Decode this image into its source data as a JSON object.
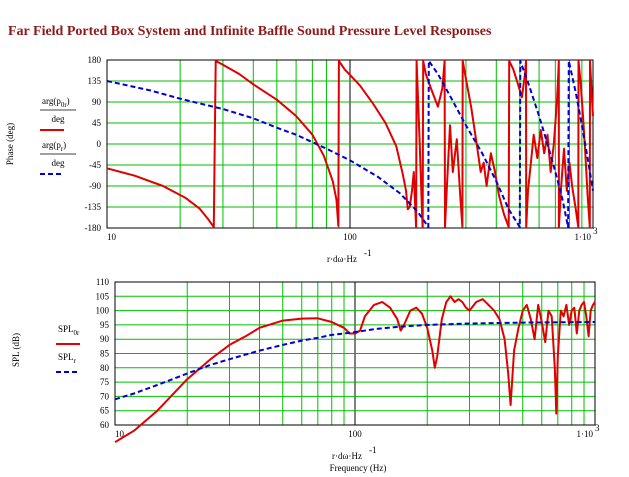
{
  "title": "Far Field Ported Box System and Infinite Baffle Sound Pressure Level Responses",
  "colors": {
    "grid": "#00c000",
    "series_solid": "#e00000",
    "series_dashed": "#0000d0",
    "title": "#8b1a1a"
  },
  "chart_data": [
    {
      "type": "line",
      "x_scale": "log",
      "xlim": [
        10,
        1000
      ],
      "ylim": [
        -180,
        180
      ],
      "yticks": [
        -180,
        -135,
        -90,
        -45,
        0,
        45,
        90,
        135,
        180
      ],
      "xticks": [
        "10",
        "100",
        "1·10"
      ],
      "xtick_exp": "3",
      "xlabel": "r·dω·Hz",
      "xlabel_exp": "-1",
      "ylabel": "Phase (deg)",
      "legend": [
        {
          "expr": "arg(p",
          "sub": "0r",
          "tail": ")",
          "den": "deg",
          "style": "solid"
        },
        {
          "expr": "arg(p",
          "sub": "r",
          "tail": ")",
          "den": "deg",
          "style": "dashed"
        }
      ],
      "series": [
        {
          "style": "solid",
          "points": [
            [
              10,
              -52
            ],
            [
              13,
              -68
            ],
            [
              17,
              -90
            ],
            [
              21,
              -115
            ],
            [
              24,
              -138
            ],
            [
              26,
              -160
            ],
            [
              27.5,
              -178
            ],
            [
              27.5,
              -175
            ],
            [
              28,
              178
            ],
            [
              30,
              170
            ],
            [
              35,
              150
            ],
            [
              40,
              128
            ],
            [
              50,
              95
            ],
            [
              60,
              60
            ],
            [
              70,
              20
            ],
            [
              78,
              -25
            ],
            [
              85,
              -80
            ],
            [
              88,
              -120
            ],
            [
              89.5,
              -175
            ],
            [
              90,
              178
            ],
            [
              95,
              160
            ],
            [
              100,
              148
            ],
            [
              110,
              125
            ],
            [
              125,
              85
            ],
            [
              140,
              45
            ],
            [
              155,
              -5
            ],
            [
              165,
              -65
            ],
            [
              170,
              -100
            ],
            [
              173,
              -140
            ],
            [
              176,
              -135
            ],
            [
              180,
              -100
            ],
            [
              183,
              -60
            ],
            [
              185,
              -120
            ],
            [
              187,
              -178
            ],
            [
              188,
              178
            ],
            [
              191,
              80
            ],
            [
              194,
              -10
            ],
            [
              197,
              -120
            ],
            [
              199,
              -178
            ],
            [
              200,
              178
            ],
            [
              205,
              150
            ],
            [
              215,
              120
            ],
            [
              230,
              80
            ],
            [
              240,
              120
            ],
            [
              245,
              178
            ],
            [
              246,
              -178
            ],
            [
              250,
              -100
            ],
            [
              258,
              40
            ],
            [
              265,
              -60
            ],
            [
              275,
              10
            ],
            [
              285,
              -120
            ],
            [
              290,
              -178
            ],
            [
              291,
              178
            ],
            [
              300,
              140
            ],
            [
              315,
              80
            ],
            [
              330,
              10
            ],
            [
              345,
              -60
            ],
            [
              355,
              -40
            ],
            [
              365,
              -90
            ],
            [
              380,
              -20
            ],
            [
              395,
              -60
            ],
            [
              410,
              -110
            ],
            [
              430,
              -150
            ],
            [
              450,
              -178
            ],
            [
              452,
              178
            ],
            [
              470,
              160
            ],
            [
              490,
              130
            ],
            [
              510,
              100
            ],
            [
              525,
              150
            ],
            [
              530,
              178
            ],
            [
              531,
              -178
            ],
            [
              540,
              -100
            ],
            [
              555,
              -40
            ],
            [
              570,
              20
            ],
            [
              590,
              -30
            ],
            [
              610,
              30
            ],
            [
              630,
              -20
            ],
            [
              650,
              20
            ],
            [
              670,
              -60
            ],
            [
              690,
              0
            ],
            [
              710,
              90
            ],
            [
              720,
              150
            ],
            [
              723,
              178
            ],
            [
              724,
              -178
            ],
            [
              740,
              -90
            ],
            [
              760,
              -10
            ],
            [
              780,
              -100
            ],
            [
              800,
              -40
            ],
            [
              820,
              -90
            ],
            [
              850,
              -140
            ],
            [
              870,
              -178
            ],
            [
              872,
              178
            ],
            [
              890,
              130
            ],
            [
              910,
              60
            ],
            [
              930,
              -20
            ],
            [
              950,
              -110
            ],
            [
              970,
              -178
            ],
            [
              972,
              178
            ],
            [
              990,
              100
            ],
            [
              1000,
              60
            ]
          ]
        },
        {
          "style": "dashed",
          "points": [
            [
              10,
              135
            ],
            [
              15,
              115
            ],
            [
              20,
              97
            ],
            [
              30,
              75
            ],
            [
              40,
              55
            ],
            [
              50,
              35
            ],
            [
              60,
              20
            ],
            [
              80,
              -10
            ],
            [
              100,
              -35
            ],
            [
              130,
              -70
            ],
            [
              160,
              -105
            ],
            [
              190,
              -145
            ],
            [
              210,
              -178
            ],
            [
              211,
              178
            ],
            [
              230,
              150
            ],
            [
              260,
              100
            ],
            [
              300,
              40
            ],
            [
              350,
              -20
            ],
            [
              400,
              -80
            ],
            [
              450,
              -140
            ],
            [
              500,
              -178
            ],
            [
              502,
              178
            ],
            [
              550,
              120
            ],
            [
              600,
              60
            ],
            [
              650,
              0
            ],
            [
              700,
              -60
            ],
            [
              750,
              -120
            ],
            [
              790,
              -178
            ],
            [
              795,
              178
            ],
            [
              850,
              110
            ],
            [
              900,
              40
            ],
            [
              950,
              -30
            ],
            [
              1000,
              -100
            ]
          ]
        }
      ]
    },
    {
      "type": "line",
      "x_scale": "log",
      "xlim": [
        10,
        1000
      ],
      "ylim": [
        60,
        110
      ],
      "yticks": [
        60,
        65,
        70,
        75,
        80,
        85,
        90,
        95,
        100,
        105,
        110
      ],
      "xticks": [
        "10",
        "100",
        "1·10"
      ],
      "xtick_exp": "3",
      "xlabel": "r·dω·Hz",
      "xlabel_exp": "-1",
      "xlabel2": "Frequency (Hz)",
      "ylabel": "SPL (dB)",
      "legend": [
        {
          "expr": "SPL",
          "sub": "0r",
          "style": "solid"
        },
        {
          "expr": "SPL",
          "sub": "r",
          "style": "dashed"
        }
      ],
      "series": [
        {
          "style": "solid",
          "points": [
            [
              10,
              54
            ],
            [
              12,
              58
            ],
            [
              15,
              65
            ],
            [
              20,
              76
            ],
            [
              25,
              83
            ],
            [
              30,
              88
            ],
            [
              35,
              91
            ],
            [
              40,
              94
            ],
            [
              50,
              96.5
            ],
            [
              60,
              97.2
            ],
            [
              70,
              97.3
            ],
            [
              80,
              96
            ],
            [
              90,
              94
            ],
            [
              95,
              92
            ],
            [
              100,
              92
            ],
            [
              105,
              93
            ],
            [
              110,
              98
            ],
            [
              120,
              102
            ],
            [
              130,
              103
            ],
            [
              140,
              101
            ],
            [
              150,
              97
            ],
            [
              155,
              93
            ],
            [
              160,
              95
            ],
            [
              170,
              100
            ],
            [
              180,
              101
            ],
            [
              190,
              99
            ],
            [
              200,
              94
            ],
            [
              210,
              86
            ],
            [
              215,
              80
            ],
            [
              220,
              84
            ],
            [
              230,
              97
            ],
            [
              240,
              103
            ],
            [
              250,
              105
            ],
            [
              260,
              103
            ],
            [
              270,
              104
            ],
            [
              280,
              103
            ],
            [
              290,
              101
            ],
            [
              300,
              100
            ],
            [
              320,
              103
            ],
            [
              340,
              104
            ],
            [
              360,
              102
            ],
            [
              380,
              100
            ],
            [
              400,
              97
            ],
            [
              420,
              90
            ],
            [
              435,
              78
            ],
            [
              445,
              67
            ],
            [
              460,
              86
            ],
            [
              480,
              94
            ],
            [
              500,
              100
            ],
            [
              520,
              102
            ],
            [
              540,
              97
            ],
            [
              560,
              90
            ],
            [
              580,
              102
            ],
            [
              600,
              96
            ],
            [
              620,
              89
            ],
            [
              640,
              100
            ],
            [
              660,
              98
            ],
            [
              680,
              80
            ],
            [
              690,
              64
            ],
            [
              700,
              84
            ],
            [
              720,
              100
            ],
            [
              740,
              98
            ],
            [
              760,
              102
            ],
            [
              780,
              95
            ],
            [
              800,
              100
            ],
            [
              820,
              101
            ],
            [
              840,
              92
            ],
            [
              860,
              100
            ],
            [
              880,
              102
            ],
            [
              900,
              103
            ],
            [
              920,
              98
            ],
            [
              940,
              91
            ],
            [
              960,
              100
            ],
            [
              980,
              102
            ],
            [
              1000,
              103
            ]
          ]
        },
        {
          "style": "dashed",
          "points": [
            [
              10,
              69
            ],
            [
              12,
              71
            ],
            [
              15,
              74
            ],
            [
              20,
              78
            ],
            [
              25,
              81
            ],
            [
              30,
              83
            ],
            [
              40,
              86
            ],
            [
              50,
              88
            ],
            [
              60,
              89.5
            ],
            [
              70,
              90.5
            ],
            [
              80,
              91.5
            ],
            [
              90,
              92
            ],
            [
              100,
              92.5
            ],
            [
              120,
              93.5
            ],
            [
              150,
              94.3
            ],
            [
              200,
              95
            ],
            [
              300,
              95.5
            ],
            [
              500,
              95.8
            ],
            [
              1000,
              96
            ]
          ]
        }
      ]
    }
  ]
}
